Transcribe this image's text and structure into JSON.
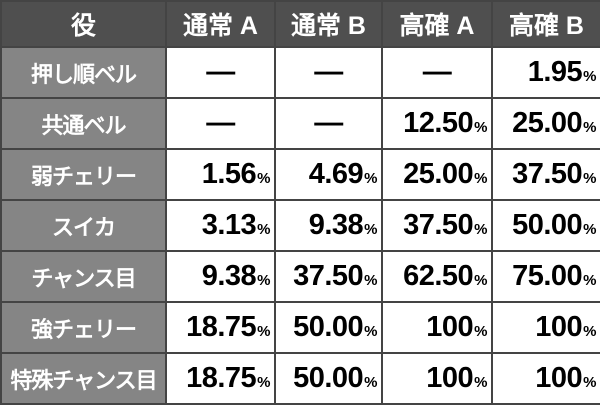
{
  "table": {
    "headers": [
      "役",
      "通常 A",
      "通常 B",
      "高確 A",
      "高確 B"
    ],
    "unit": "%",
    "rows": [
      {
        "role": "押し順ベル",
        "values": [
          "—",
          "—",
          "—",
          "1.95"
        ]
      },
      {
        "role": "共通ベル",
        "values": [
          "—",
          "—",
          "12.50",
          "25.00"
        ]
      },
      {
        "role": "弱チェリー",
        "values": [
          "1.56",
          "4.69",
          "25.00",
          "37.50"
        ]
      },
      {
        "role": "スイカ",
        "values": [
          "3.13",
          "9.38",
          "37.50",
          "50.00"
        ]
      },
      {
        "role": "チャンス目",
        "values": [
          "9.38",
          "37.50",
          "62.50",
          "75.00"
        ]
      },
      {
        "role": "強チェリー",
        "values": [
          "18.75",
          "50.00",
          "100",
          "100"
        ]
      },
      {
        "role": "特殊チャンス目",
        "values": [
          "18.75",
          "50.00",
          "100",
          "100"
        ]
      }
    ]
  },
  "colors": {
    "header_bg": "#4f4f4f",
    "role_bg": "#858585",
    "cell_bg": "#ffffff",
    "border": "#444444"
  }
}
